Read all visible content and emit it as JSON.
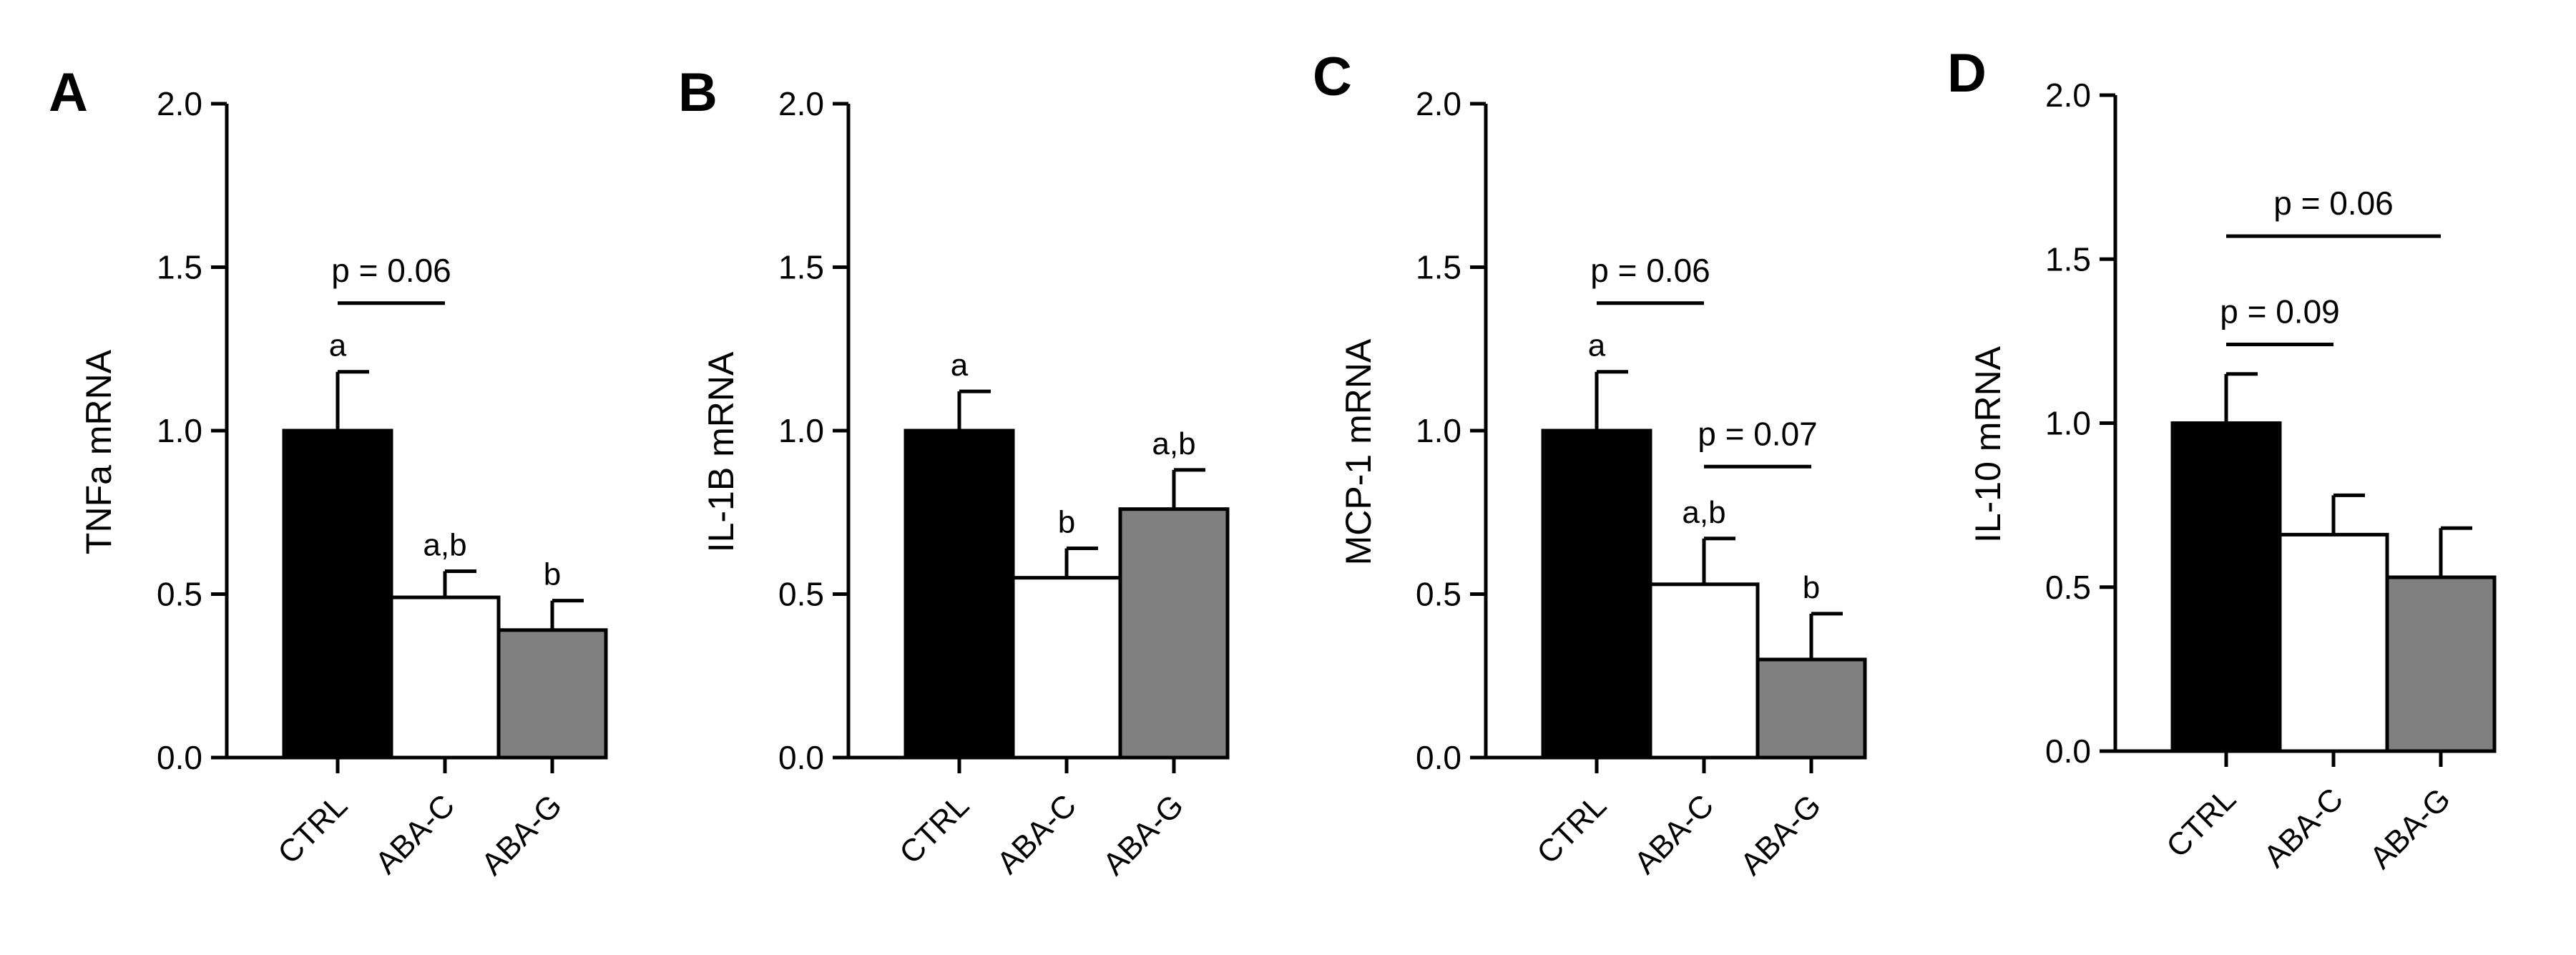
{
  "figure": {
    "colors": {
      "CTRL": "#000000",
      "ABA-C": "#ffffff",
      "ABA-G": "#808080",
      "axis": "#000000"
    }
  },
  "chart_data": [
    {
      "panel": "A",
      "type": "bar",
      "ylabel": "TNFa mRNA",
      "categories": [
        "CTRL",
        "ABA-C",
        "ABA-G"
      ],
      "values": [
        1.0,
        0.49,
        0.39
      ],
      "errors": [
        0.18,
        0.08,
        0.09
      ],
      "ylim": [
        0,
        2.0
      ],
      "yticks": [
        "0.0",
        "0.5",
        "1.0",
        "1.5",
        "2.0"
      ],
      "letters": [
        "a",
        "a,b",
        "b"
      ],
      "comparisons": [
        {
          "from": 0,
          "to": 1,
          "label": "p = 0.06",
          "y": 1.39
        }
      ]
    },
    {
      "panel": "B",
      "type": "bar",
      "ylabel": "IL-1B mRNA",
      "categories": [
        "CTRL",
        "ABA-C",
        "ABA-G"
      ],
      "values": [
        1.0,
        0.55,
        0.76
      ],
      "errors": [
        0.12,
        0.09,
        0.12
      ],
      "ylim": [
        0,
        2.0
      ],
      "yticks": [
        "0.0",
        "0.5",
        "1.0",
        "1.5",
        "2.0"
      ],
      "letters": [
        "a",
        "b",
        "a,b"
      ],
      "comparisons": []
    },
    {
      "panel": "C",
      "type": "bar",
      "ylabel": "MCP-1 mRNA",
      "categories": [
        "CTRL",
        "ABA-C",
        "ABA-G"
      ],
      "values": [
        1.0,
        0.53,
        0.3
      ],
      "errors": [
        0.18,
        0.14,
        0.14
      ],
      "ylim": [
        0,
        2.0
      ],
      "yticks": [
        "0.0",
        "0.5",
        "1.0",
        "1.5",
        "2.0"
      ],
      "letters": [
        "a",
        "a,b",
        "b"
      ],
      "comparisons": [
        {
          "from": 0,
          "to": 1,
          "label": "p = 0.06",
          "y": 1.39
        },
        {
          "from": 1,
          "to": 2,
          "label": "p = 0.07",
          "y": 0.89
        }
      ]
    },
    {
      "panel": "D",
      "type": "bar",
      "ylabel": "IL-10 mRNA",
      "categories": [
        "CTRL",
        "ABA-C",
        "ABA-G"
      ],
      "values": [
        1.0,
        0.66,
        0.53
      ],
      "errors": [
        0.15,
        0.12,
        0.15
      ],
      "ylim": [
        0,
        2.0
      ],
      "yticks": [
        "0.0",
        "0.5",
        "1.0",
        "1.5",
        "2.0"
      ],
      "letters": [
        "",
        "",
        ""
      ],
      "comparisons": [
        {
          "from": 0,
          "to": 1,
          "label": "p = 0.09",
          "y": 1.24
        },
        {
          "from": 0,
          "to": 2,
          "label": "p = 0.06",
          "y": 1.57
        }
      ]
    }
  ]
}
